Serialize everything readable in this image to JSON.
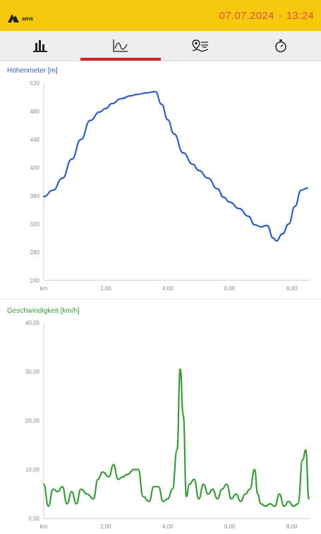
{
  "header": {
    "logo_text": "ams",
    "date": "07.07.2024",
    "separator": "-",
    "time": "13:24"
  },
  "tabs": [
    {
      "icon": "bar-chart-icon",
      "active": false
    },
    {
      "icon": "line-chart-icon",
      "active": true
    },
    {
      "icon": "map-route-icon",
      "active": false
    },
    {
      "icon": "stopwatch-icon",
      "active": false
    }
  ],
  "colors": {
    "header_bg": "#f7c90e",
    "datetime": "#e2523a",
    "tab_active": "#d8232a",
    "elevation_line": "#2f5fc4",
    "speed_line": "#3b9a3b"
  },
  "chart_data": [
    {
      "type": "line",
      "title": "Höhenmeter [m]",
      "x_unit": "km",
      "xlim": [
        0,
        8.6
      ],
      "ylim": [
        240,
        520
      ],
      "x_ticks": [
        "2,00",
        "4,00",
        "6,00",
        "8,00"
      ],
      "y_ticks": [
        "240",
        "280",
        "320",
        "360",
        "400",
        "440",
        "480",
        "520"
      ],
      "series": [
        {
          "x": [
            0,
            0.3,
            0.6,
            0.9,
            1.2,
            1.5,
            1.8,
            2.0,
            2.2,
            2.5,
            2.8,
            3.0,
            3.3,
            3.6,
            3.8,
            4.0,
            4.2,
            4.5,
            4.8,
            5.0,
            5.3,
            5.6,
            5.8,
            6.0,
            6.3,
            6.6,
            6.8,
            7.0,
            7.2,
            7.4,
            7.5,
            7.7,
            7.9,
            8.1,
            8.3,
            8.5
          ],
          "y": [
            359,
            368,
            385,
            412,
            440,
            467,
            479,
            484,
            491,
            498,
            502,
            504,
            506,
            508,
            490,
            468,
            448,
            421,
            405,
            396,
            385,
            370,
            358,
            351,
            342,
            331,
            319,
            316,
            318,
            300,
            296,
            306,
            320,
            345,
            368,
            371
          ]
        }
      ]
    },
    {
      "type": "line",
      "title": "Geschwindigkeit [km/h]",
      "x_unit": "km",
      "xlim": [
        0,
        8.6
      ],
      "ylim": [
        0,
        40
      ],
      "x_ticks": [
        "2,00",
        "4,00",
        "6,00",
        "8,00"
      ],
      "y_ticks": [
        "0,00",
        "10,00",
        "20,00",
        "30,00",
        "40,00"
      ],
      "series": [
        {
          "x": [
            0,
            0.15,
            0.3,
            0.45,
            0.6,
            0.75,
            0.9,
            1.05,
            1.2,
            1.4,
            1.6,
            1.75,
            1.9,
            2.1,
            2.25,
            2.4,
            2.55,
            2.7,
            2.9,
            3.05,
            3.2,
            3.4,
            3.55,
            3.7,
            3.85,
            4.0,
            4.15,
            4.3,
            4.4,
            4.5,
            4.6,
            4.7,
            4.85,
            5.0,
            5.15,
            5.3,
            5.45,
            5.6,
            5.75,
            5.9,
            6.05,
            6.2,
            6.35,
            6.5,
            6.65,
            6.8,
            6.9,
            7.0,
            7.15,
            7.3,
            7.45,
            7.6,
            7.75,
            7.9,
            8.05,
            8.2,
            8.35,
            8.45,
            8.55
          ],
          "y": [
            7,
            2.5,
            6,
            5.5,
            6.5,
            3,
            5.5,
            3,
            6,
            5,
            4,
            8,
            9.5,
            8.5,
            11,
            8,
            8.5,
            9,
            10,
            10,
            4.5,
            3.5,
            6.5,
            6.5,
            3.5,
            4,
            6,
            14,
            30.5,
            21,
            4.5,
            7,
            8,
            4,
            7,
            5,
            6,
            4,
            6,
            7,
            4,
            5,
            3.5,
            5,
            6,
            10,
            5,
            3,
            2.5,
            3,
            2.5,
            5,
            2.5,
            3.5,
            2.5,
            3,
            12,
            14,
            4
          ]
        }
      ]
    }
  ]
}
